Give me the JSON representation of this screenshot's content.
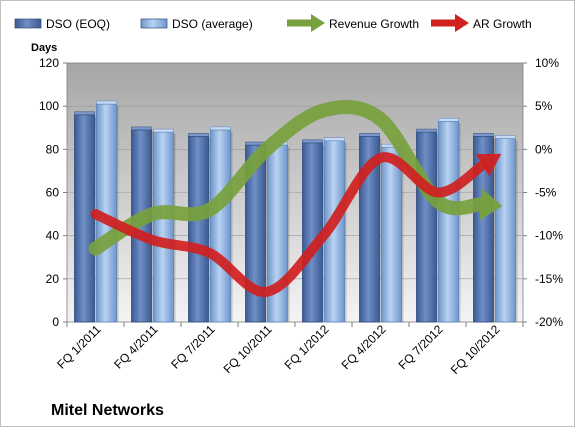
{
  "chart_data": {
    "type": "bar",
    "company": "Mitel Networks",
    "y_axis_title": "Days",
    "categories": [
      "FQ 1/2011",
      "FQ 4/2011",
      "FQ 7/2011",
      "FQ 10/2011",
      "FQ 1/2012",
      "FQ 4/2012",
      "FQ 7/2012",
      "FQ 10/2012"
    ],
    "ylim": [
      0,
      120
    ],
    "y_ticks": [
      "0",
      "20",
      "40",
      "60",
      "80",
      "100",
      "120"
    ],
    "y2lim": [
      -20,
      10
    ],
    "y2_ticks": [
      "-20%",
      "-15%",
      "-10%",
      "-5%",
      "0%",
      "5%",
      "10%"
    ],
    "legend_position": "top",
    "grid": true,
    "bar_series": [
      {
        "name": "DSO (EOQ)",
        "color": "#4f6fa8",
        "values": [
          96,
          89,
          86,
          82,
          83,
          86,
          88,
          86
        ]
      },
      {
        "name": "DSO (average)",
        "color": "#8fb4e3",
        "values": [
          101,
          88,
          89,
          82,
          84,
          81,
          93,
          85
        ]
      }
    ],
    "line_series": [
      {
        "name": "Revenue Growth",
        "color": "#77a13c",
        "axis": "secondary",
        "values": [
          -11.5,
          -7.5,
          -7.0,
          0.0,
          4.5,
          3.5,
          -6.0,
          -6.5
        ]
      },
      {
        "name": "AR Growth",
        "color": "#d02020",
        "axis": "secondary",
        "values": [
          -7.5,
          -10.5,
          -12.0,
          -16.5,
          -10.0,
          -1.0,
          -5.0,
          -1.0
        ]
      }
    ]
  }
}
